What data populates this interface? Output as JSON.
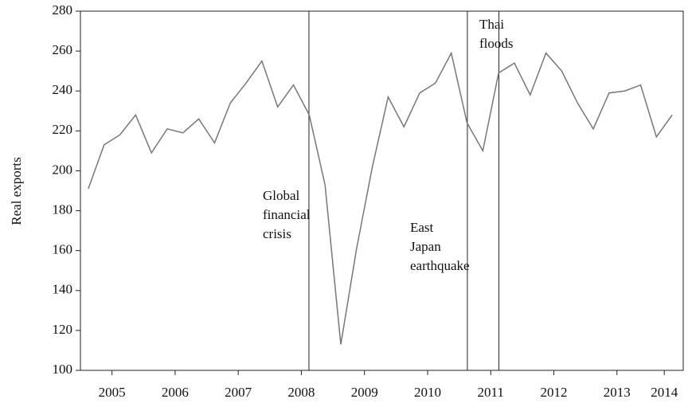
{
  "chart_data": {
    "type": "line",
    "y_label": "Real exports",
    "x": [
      2005.125,
      2005.375,
      2005.625,
      2005.875,
      2006.125,
      2006.375,
      2006.625,
      2006.875,
      2007.125,
      2007.375,
      2007.625,
      2007.875,
      2008.125,
      2008.375,
      2008.625,
      2008.875,
      2009.125,
      2009.375,
      2009.625,
      2009.875,
      2010.125,
      2010.375,
      2010.625,
      2010.875,
      2011.125,
      2011.375,
      2011.625,
      2011.875,
      2012.125,
      2012.375,
      2012.625,
      2012.875,
      2013.125,
      2013.375,
      2013.625,
      2013.875,
      2014.125,
      2014.375
    ],
    "series": [
      {
        "color": "#777777",
        "values": [
          191,
          213,
          218,
          228,
          209,
          221,
          219,
          226,
          214,
          234,
          244,
          255,
          232,
          243,
          228,
          193,
          113,
          161,
          202,
          237,
          222,
          239,
          244,
          259,
          224,
          210,
          249,
          254,
          238,
          259,
          250,
          234,
          221,
          239,
          240,
          243,
          217,
          228
        ]
      }
    ],
    "xlim": [
      2005,
      2014.55
    ],
    "xticks": [
      {
        "value": 2005.5,
        "label": "2005"
      },
      {
        "value": 2006.5,
        "label": "2006"
      },
      {
        "value": 2007.5,
        "label": "2007"
      },
      {
        "value": 2008.5,
        "label": "2008"
      },
      {
        "value": 2009.5,
        "label": "2009"
      },
      {
        "value": 2010.5,
        "label": "2010"
      },
      {
        "value": 2011.5,
        "label": "2011"
      },
      {
        "value": 2012.5,
        "label": "2012"
      },
      {
        "value": 2013.5,
        "label": "2013"
      },
      {
        "value": 2014.25,
        "label": "2014"
      }
    ],
    "ylim": [
      100,
      280
    ],
    "yticks": [
      100,
      120,
      140,
      160,
      180,
      200,
      220,
      240,
      260,
      280
    ],
    "annotations": [
      {
        "x": 2008.62,
        "lines": [
          "Global",
          "financial",
          "crisis"
        ]
      },
      {
        "x": 2011.13,
        "lines": [
          "East",
          "Japan",
          "earthquake"
        ]
      },
      {
        "x": 2011.63,
        "lines": [
          "Thai",
          "floods"
        ]
      }
    ]
  }
}
